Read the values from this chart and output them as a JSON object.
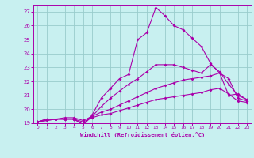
{
  "xlabel": "Windchill (Refroidissement éolien,°C)",
  "bg_color": "#c8f0f0",
  "line_color": "#aa00aa",
  "grid_color": "#99cccc",
  "axis_color": "#aa00aa",
  "xlim": [
    -0.5,
    23.5
  ],
  "ylim": [
    19,
    27.5
  ],
  "xticks": [
    0,
    1,
    2,
    3,
    4,
    5,
    6,
    7,
    8,
    9,
    10,
    11,
    12,
    13,
    14,
    15,
    16,
    17,
    18,
    19,
    20,
    21,
    22,
    23
  ],
  "yticks": [
    19,
    20,
    21,
    22,
    23,
    24,
    25,
    26,
    27
  ],
  "lines": [
    {
      "x": [
        0,
        1,
        2,
        3,
        4,
        5,
        6,
        7,
        8,
        9,
        10,
        11,
        12,
        13,
        14,
        15,
        16,
        17,
        18,
        19,
        20,
        21,
        22,
        23
      ],
      "y": [
        19.1,
        19.3,
        19.3,
        19.3,
        19.3,
        18.9,
        19.6,
        20.8,
        21.5,
        22.2,
        22.5,
        25.0,
        25.5,
        27.3,
        26.7,
        26.0,
        25.7,
        25.1,
        24.5,
        23.3,
        22.6,
        21.0,
        21.1,
        20.7
      ]
    },
    {
      "x": [
        0,
        1,
        2,
        3,
        4,
        5,
        6,
        7,
        8,
        9,
        10,
        11,
        12,
        13,
        14,
        15,
        16,
        17,
        18,
        19,
        20,
        21,
        22,
        23
      ],
      "y": [
        19.1,
        19.3,
        19.3,
        19.3,
        19.3,
        18.9,
        19.5,
        20.2,
        20.8,
        21.3,
        21.8,
        22.2,
        22.7,
        23.2,
        23.2,
        23.2,
        23.0,
        22.8,
        22.6,
        23.2,
        22.7,
        21.8,
        21.0,
        20.7
      ]
    },
    {
      "x": [
        0,
        1,
        2,
        3,
        4,
        5,
        6,
        7,
        8,
        9,
        10,
        11,
        12,
        13,
        14,
        15,
        16,
        17,
        18,
        19,
        20,
        21,
        22,
        23
      ],
      "y": [
        19.1,
        19.2,
        19.3,
        19.4,
        19.4,
        19.2,
        19.5,
        19.8,
        20.0,
        20.3,
        20.6,
        20.9,
        21.2,
        21.5,
        21.7,
        21.9,
        22.1,
        22.2,
        22.3,
        22.4,
        22.6,
        22.2,
        20.8,
        20.6
      ]
    },
    {
      "x": [
        0,
        1,
        2,
        3,
        4,
        5,
        6,
        7,
        8,
        9,
        10,
        11,
        12,
        13,
        14,
        15,
        16,
        17,
        18,
        19,
        20,
        21,
        22,
        23
      ],
      "y": [
        19.1,
        19.2,
        19.3,
        19.3,
        19.3,
        19.1,
        19.4,
        19.6,
        19.7,
        19.9,
        20.1,
        20.3,
        20.5,
        20.7,
        20.8,
        20.9,
        21.0,
        21.1,
        21.2,
        21.4,
        21.5,
        21.1,
        20.6,
        20.5
      ]
    }
  ]
}
